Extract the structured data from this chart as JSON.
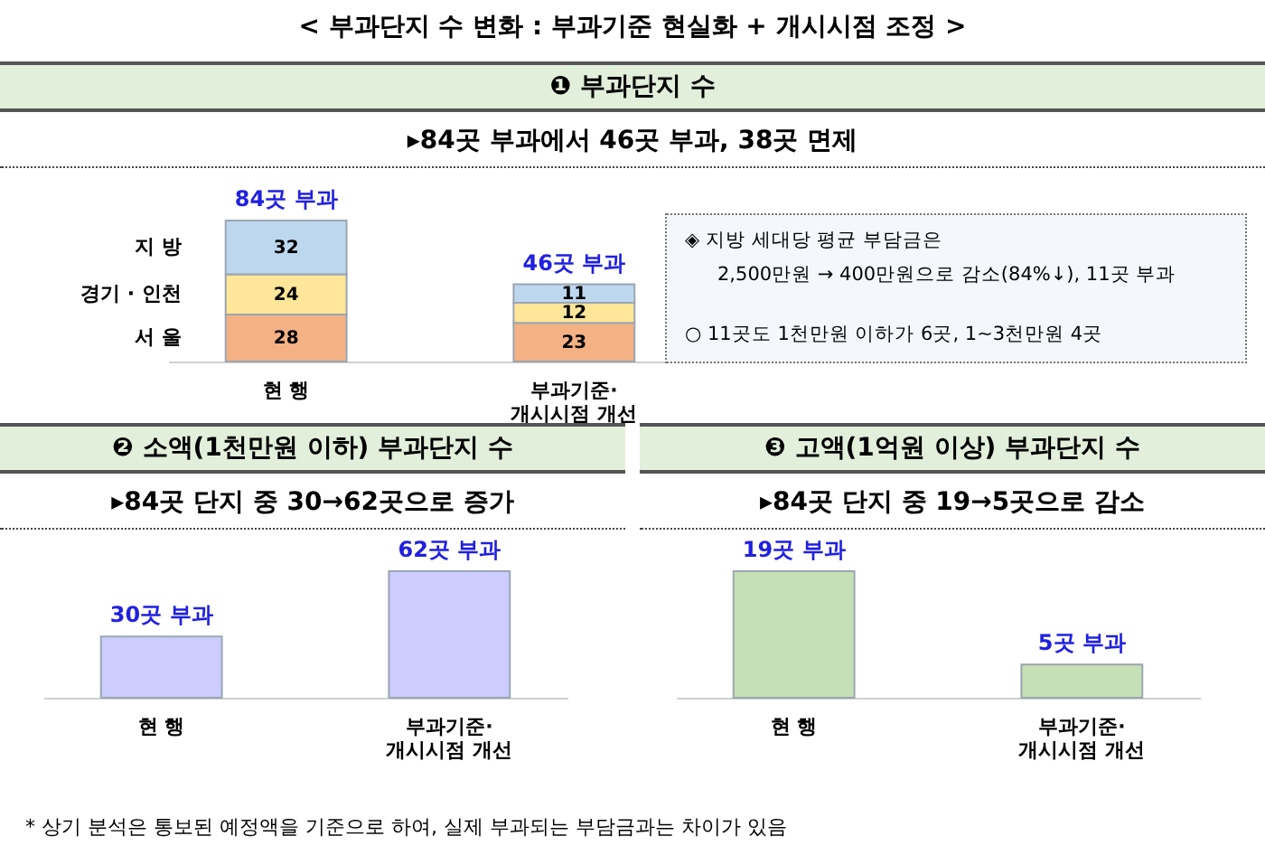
{
  "chart_data": [
    {
      "type": "bar",
      "stacked": true,
      "title": "❶ 부과단지 수",
      "subtitle": "▸84곳 부과에서 46곳 부과, 38곳 면제",
      "annotations": [
        "< 부과단지 수 변화 : 부과기준 현실화 + 개시시점 조정 >",
        "* 상기 분석은 통보된 예정액을 기준으로 하여, 실제 부과되는 부담금과는 차이가 있음"
      ],
      "categories": [
        "현 행",
        "부과기준·개시시점 개선"
      ],
      "series": [
        {
          "name": "서 울",
          "color": "#f4b183",
          "values": [
            28,
            23
          ]
        },
        {
          "name": "경기 · 인천",
          "color": "#ffe699",
          "values": [
            24,
            12
          ]
        },
        {
          "name": "지 방",
          "color": "#bdd7ee",
          "values": [
            32,
            11
          ]
        }
      ],
      "data_labels": true,
      "totals": [
        "84곳 부과",
        "46곳 부과"
      ]
    },
    {
      "type": "other",
      "annotations": [
        "◈ 지방 세대당 평균 부담금은",
        "2,500만원 → 400만원으로 감소(84%↓), 11곳 부과",
        "○ 11곳도 1천만원 이하가 6곳, 1~3천만원 4곳"
      ]
    },
    {
      "type": "bar",
      "title": "❷ 소액(1천만원 이하) 부과단지 수",
      "subtitle": "▸84곳 단지 중 30→62곳으로 증가",
      "categories": [
        "현 행",
        "부과기준·개시시점 개선"
      ],
      "values": [
        30,
        62
      ],
      "color": "#ccccff",
      "value_labels": [
        "30곳 부과",
        "62곳 부과"
      ]
    },
    {
      "type": "bar",
      "title": "❸ 고액(1억원 이상) 부과단지 수",
      "subtitle": "▸84곳 단지 중 19→5곳으로 감소",
      "categories": [
        "현 행",
        "부과기준·개시시점 개선"
      ],
      "values": [
        19,
        5
      ],
      "color": "#c5e0b4",
      "value_labels": [
        "19곳 부과",
        "5곳 부과"
      ]
    }
  ]
}
